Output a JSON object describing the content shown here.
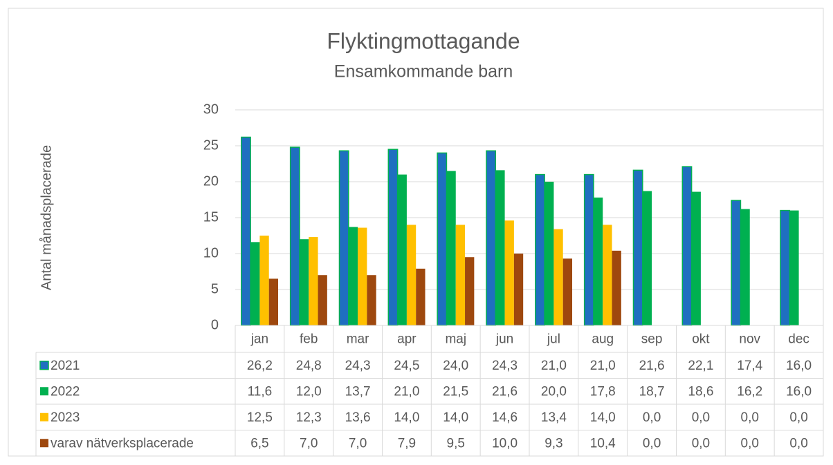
{
  "chart_data": {
    "type": "bar",
    "title": "Flyktingmottagande",
    "subtitle": "Ensamkommande barn",
    "y_label": "Antal månadsplacerade",
    "categories": [
      "jan",
      "feb",
      "mar",
      "apr",
      "maj",
      "jun",
      "jul",
      "aug",
      "sep",
      "okt",
      "nov",
      "dec"
    ],
    "series": [
      {
        "name": "2021",
        "color": "#1f6fc0",
        "edge": "#00b050",
        "values": [
          26.2,
          24.8,
          24.3,
          24.5,
          24.0,
          24.3,
          21.0,
          21.0,
          21.6,
          22.1,
          17.4,
          16.0
        ],
        "value_labels": [
          "26,2",
          "24,8",
          "24,3",
          "24,5",
          "24,0",
          "24,3",
          "21,0",
          "21,0",
          "21,6",
          "22,1",
          "17,4",
          "16,0"
        ]
      },
      {
        "name": "2022",
        "color": "#00b050",
        "values": [
          11.6,
          12.0,
          13.7,
          21.0,
          21.5,
          21.6,
          20.0,
          17.8,
          18.7,
          18.6,
          16.2,
          16.0
        ],
        "value_labels": [
          "11,6",
          "12,0",
          "13,7",
          "21,0",
          "21,5",
          "21,6",
          "20,0",
          "17,8",
          "18,7",
          "18,6",
          "16,2",
          "16,0"
        ]
      },
      {
        "name": "2023",
        "color": "#ffc000",
        "values": [
          12.5,
          12.3,
          13.6,
          14.0,
          14.0,
          14.6,
          13.4,
          14.0,
          0.0,
          0.0,
          0.0,
          0.0
        ],
        "value_labels": [
          "12,5",
          "12,3",
          "13,6",
          "14,0",
          "14,0",
          "14,6",
          "13,4",
          "14,0",
          "0,0",
          "0,0",
          "0,0",
          "0,0"
        ]
      },
      {
        "name": "varav nätverksplacerade",
        "color": "#9e480e",
        "values": [
          6.5,
          7.0,
          7.0,
          7.9,
          9.5,
          10.0,
          9.3,
          10.4,
          0.0,
          0.0,
          0.0,
          0.0
        ],
        "value_labels": [
          "6,5",
          "7,0",
          "7,0",
          "7,9",
          "9,5",
          "10,0",
          "9,3",
          "10,4",
          "0,0",
          "0,0",
          "0,0",
          "0,0"
        ]
      }
    ],
    "ylim": [
      0,
      30
    ],
    "yticks": [
      0,
      5,
      10,
      15,
      20,
      25,
      30
    ],
    "grid": true,
    "data_table": true
  }
}
